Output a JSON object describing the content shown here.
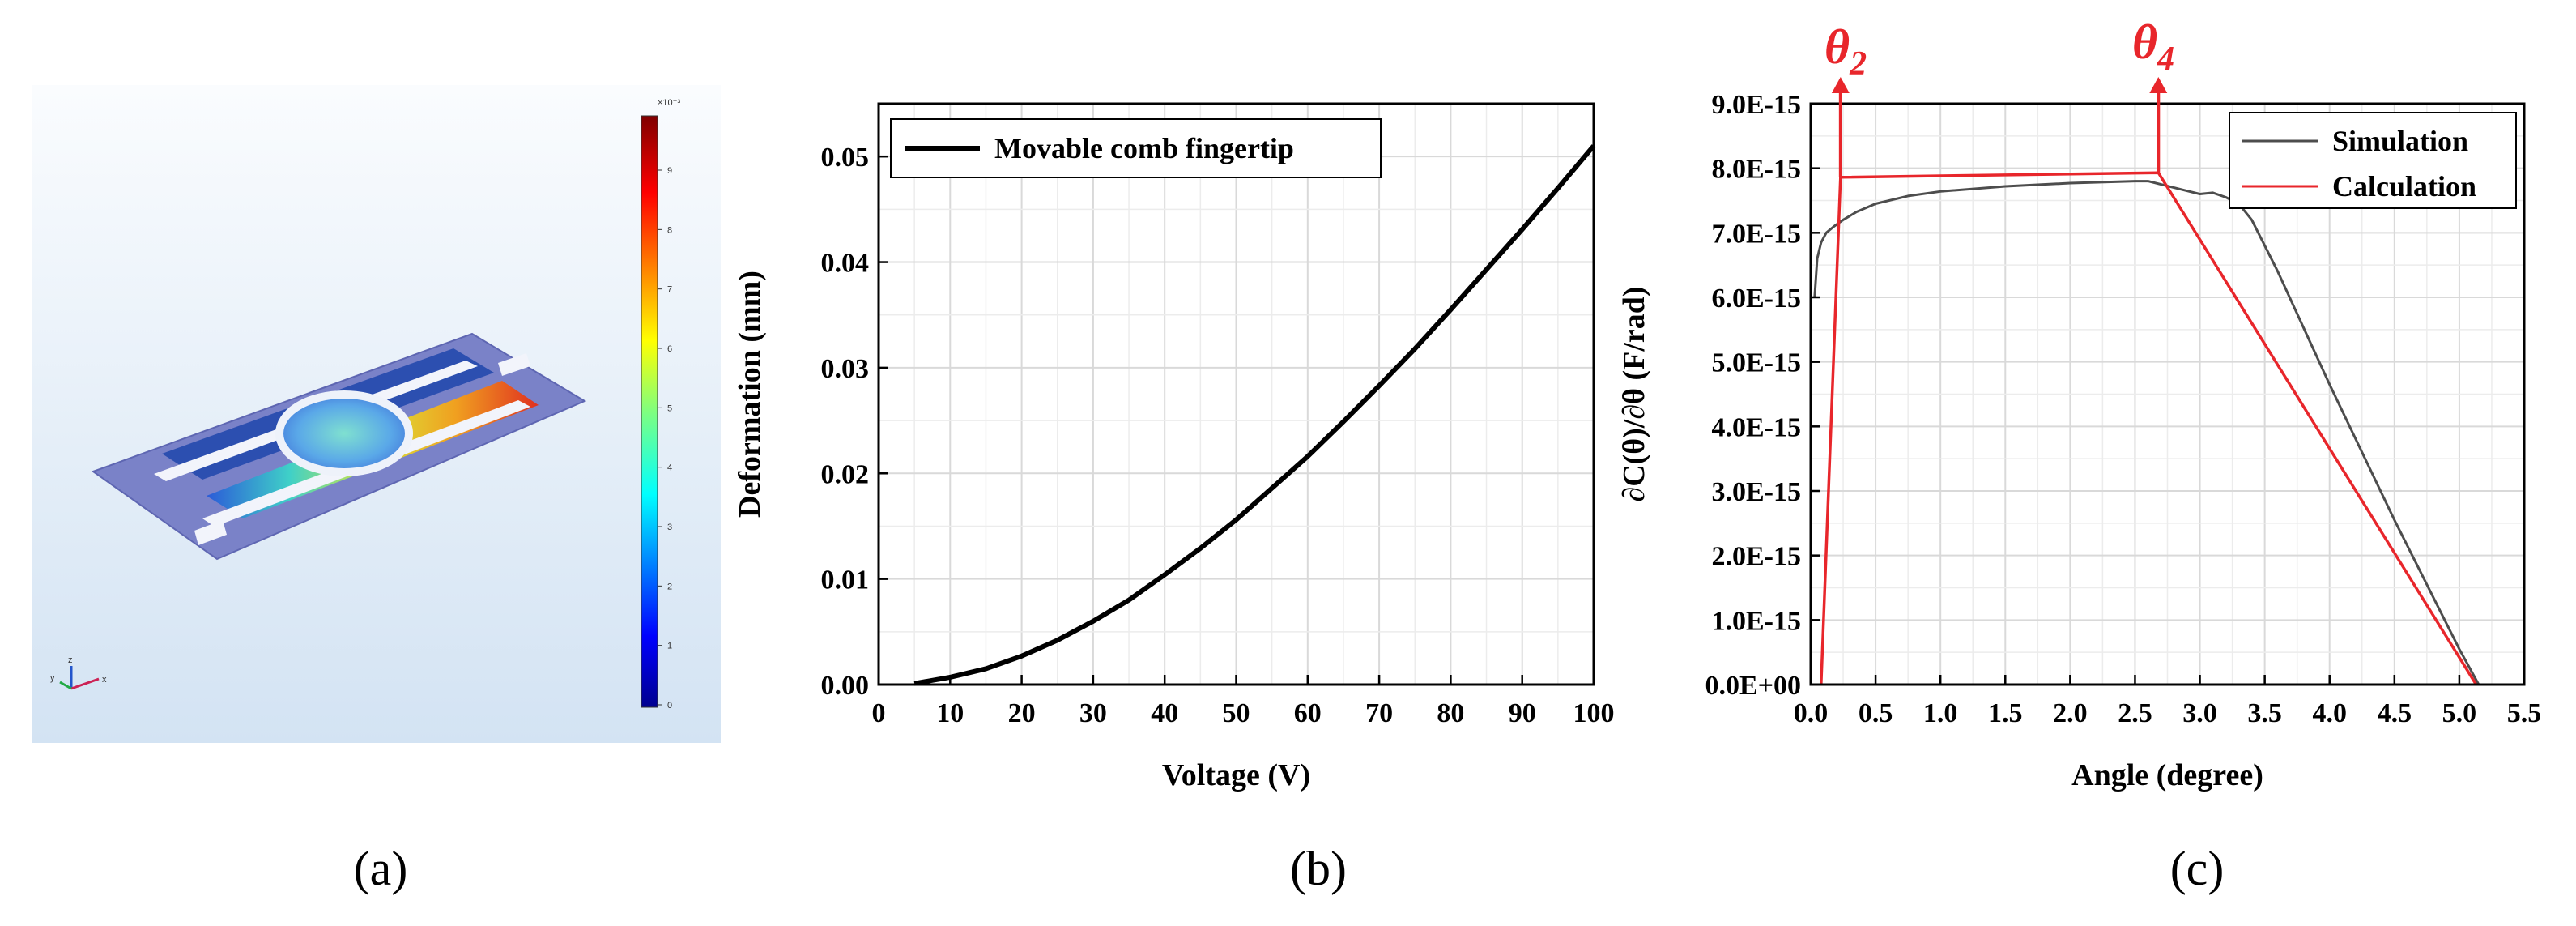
{
  "panels": {
    "a": {
      "label": "(a)",
      "colorbar": {
        "exponent": "×10⁻³",
        "ticks": [
          "9",
          "8",
          "7",
          "6",
          "5",
          "4",
          "3",
          "2",
          "1",
          "0"
        ]
      },
      "axes_triad": {
        "y": "y",
        "z": "z",
        "x": "x"
      }
    },
    "b": {
      "label": "(b)"
    },
    "c": {
      "label": "(c)",
      "theta_left": "θ",
      "theta_left_sub": "2",
      "theta_right": "θ",
      "theta_right_sub": "4"
    }
  },
  "chart_data": [
    {
      "panel": "b",
      "type": "line",
      "title": "",
      "xlabel": "Voltage  (V)",
      "ylabel": "Deformation (mm)",
      "xlim": [
        0,
        100
      ],
      "ylim": [
        0,
        0.055
      ],
      "xticks": [
        0,
        10,
        20,
        30,
        40,
        50,
        60,
        70,
        80,
        90,
        100
      ],
      "yticks": [
        0.0,
        0.01,
        0.02,
        0.03,
        0.04,
        0.05
      ],
      "ytick_labels": [
        "0.00",
        "0.01",
        "0.02",
        "0.03",
        "0.04",
        "0.05"
      ],
      "grid": true,
      "legend": "top-left",
      "series": [
        {
          "name": "Movable comb fingertip",
          "color": "#000000",
          "x": [
            5,
            10,
            15,
            20,
            25,
            30,
            35,
            40,
            45,
            50,
            55,
            60,
            65,
            70,
            75,
            80,
            85,
            90,
            95,
            100
          ],
          "y": [
            0.0001,
            0.0007,
            0.0015,
            0.0027,
            0.0042,
            0.006,
            0.008,
            0.0104,
            0.0129,
            0.0156,
            0.0186,
            0.0216,
            0.0249,
            0.0283,
            0.0318,
            0.0355,
            0.0393,
            0.0431,
            0.047,
            0.051
          ]
        }
      ]
    },
    {
      "panel": "c",
      "type": "line",
      "title": "",
      "xlabel": "Angle (degree)",
      "ylabel": "∂C(θ)/∂θ (F/rad)",
      "xlim": [
        0,
        5.5
      ],
      "ylim": [
        0,
        9e-15
      ],
      "xticks": [
        0.0,
        0.5,
        1.0,
        1.5,
        2.0,
        2.5,
        3.0,
        3.5,
        4.0,
        4.5,
        5.0,
        5.5
      ],
      "xtick_labels": [
        "0.0",
        "0.5",
        "1.0",
        "1.5",
        "2.0",
        "2.5",
        "3.0",
        "3.5",
        "4.0",
        "4.5",
        "5.0",
        "5.5"
      ],
      "yticks": [
        0,
        1e-15,
        2e-15,
        3e-15,
        4e-15,
        5e-15,
        6e-15,
        7e-15,
        8e-15,
        9e-15
      ],
      "ytick_labels": [
        "0.0E+00",
        "1.0E-15",
        "2.0E-15",
        "3.0E-15",
        "4.0E-15",
        "5.0E-15",
        "6.0E-15",
        "7.0E-15",
        "8.0E-15",
        "9.0E-15"
      ],
      "grid": true,
      "legend": "top-right",
      "series": [
        {
          "name": "Simulation",
          "color": "#4d4d4d",
          "x": [
            0.03,
            0.05,
            0.08,
            0.12,
            0.18,
            0.25,
            0.35,
            0.5,
            0.75,
            1.0,
            1.5,
            2.0,
            2.5,
            2.6,
            2.7,
            2.8,
            2.9,
            3.0,
            3.1,
            3.2,
            3.3,
            3.4,
            3.6,
            4.0,
            4.5,
            5.0,
            5.15
          ],
          "y": [
            6e-15,
            6.6e-15,
            6.85e-15,
            7e-15,
            7.1e-15,
            7.2e-15,
            7.32e-15,
            7.45e-15,
            7.57e-15,
            7.64e-15,
            7.72e-15,
            7.77e-15,
            7.8e-15,
            7.8e-15,
            7.75e-15,
            7.7e-15,
            7.65e-15,
            7.6e-15,
            7.62e-15,
            7.55e-15,
            7.45e-15,
            7.2e-15,
            6.4e-15,
            4.65e-15,
            2.55e-15,
            5.5e-16,
            0.0
          ]
        },
        {
          "name": "Calculation",
          "color": "#e8262b",
          "x": [
            0.08,
            0.23,
            2.68,
            5.13
          ],
          "y": [
            0.0,
            7.86e-15,
            7.93e-15,
            0.0
          ]
        }
      ]
    }
  ]
}
